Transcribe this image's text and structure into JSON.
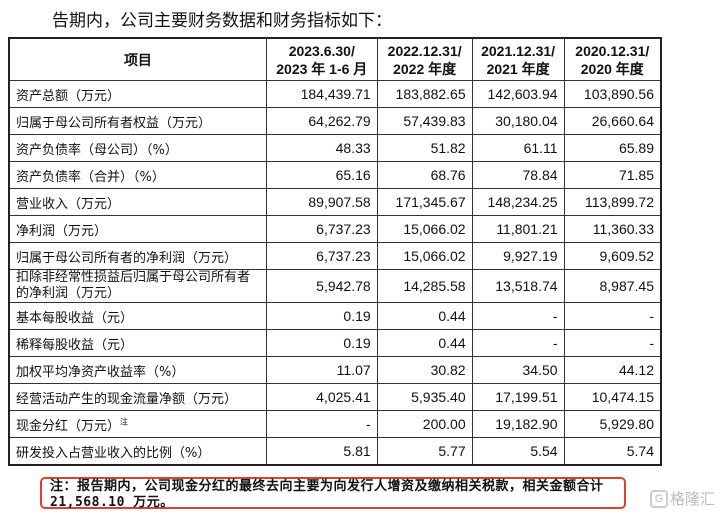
{
  "intro": "告期内，公司主要财务数据和财务指标如下：",
  "header": {
    "item": "项目",
    "cols": [
      [
        "2023.6.30/",
        "2023 年 1-6 月"
      ],
      [
        "2022.12.31/",
        "2022 年度"
      ],
      [
        "2021.12.31/",
        "2021 年度"
      ],
      [
        "2020.12.31/",
        "2020 年度"
      ]
    ]
  },
  "rows": [
    {
      "label": "资产总额（万元）",
      "values": [
        "184,439.71",
        "183,882.65",
        "142,603.94",
        "103,890.56"
      ]
    },
    {
      "label": "归属于母公司所有者权益（万元）",
      "values": [
        "64,262.79",
        "57,439.83",
        "30,180.04",
        "26,660.64"
      ]
    },
    {
      "label": "资产负债率（母公司）（%）",
      "values": [
        "48.33",
        "51.82",
        "61.11",
        "65.89"
      ]
    },
    {
      "label": "资产负债率（合并）（%）",
      "values": [
        "65.16",
        "68.76",
        "78.84",
        "71.85"
      ]
    },
    {
      "label": "营业收入（万元）",
      "values": [
        "89,907.58",
        "171,345.67",
        "148,234.25",
        "113,899.72"
      ]
    },
    {
      "label": "净利润（万元）",
      "values": [
        "6,737.23",
        "15,066.02",
        "11,801.21",
        "11,360.33"
      ]
    },
    {
      "label": "归属于母公司所有者的净利润（万元）",
      "values": [
        "6,737.23",
        "15,066.02",
        "9,927.19",
        "9,609.52"
      ]
    },
    {
      "label": "扣除非经常性损益后归属于母公司所有者的净利润（万元）",
      "values": [
        "5,942.78",
        "14,285.58",
        "13,518.74",
        "8,987.45"
      ]
    },
    {
      "label": "基本每股收益（元）",
      "values": [
        "0.19",
        "0.44",
        "-",
        "-"
      ]
    },
    {
      "label": "稀释每股收益（元）",
      "values": [
        "0.19",
        "0.44",
        "-",
        "-"
      ]
    },
    {
      "label": "加权平均净资产收益率（%）",
      "values": [
        "11.07",
        "30.82",
        "34.50",
        "44.12"
      ]
    },
    {
      "label": "经营活动产生的现金流量净额（万元）",
      "values": [
        "4,025.41",
        "5,935.40",
        "17,199.51",
        "10,474.15"
      ]
    },
    {
      "label": "现金分红（万元）",
      "sup": "注",
      "values": [
        "-",
        "200.00",
        "19,182.90",
        "5,929.80"
      ]
    },
    {
      "label": "研发投入占营业收入的比例（%）",
      "values": [
        "5.81",
        "5.77",
        "5.54",
        "5.74"
      ]
    }
  ],
  "note": "注：报告期内，公司现金分红的最终去向主要为向发行人增资及缴纳相关税款，相关金额合计 21,568.10 万元。",
  "watermark": "格隆汇",
  "colors": {
    "note_border": "#e0402a"
  }
}
